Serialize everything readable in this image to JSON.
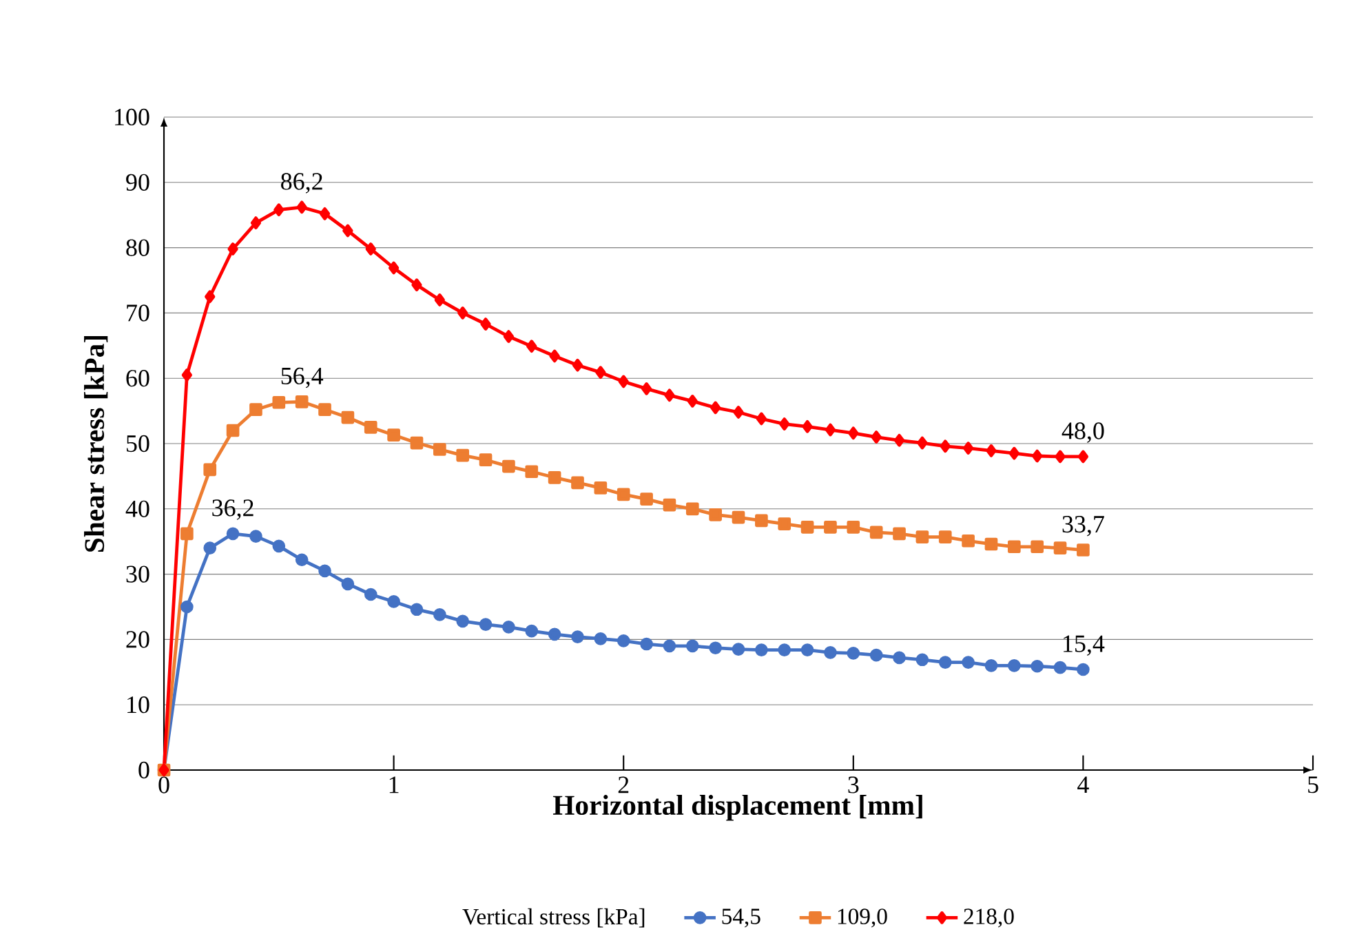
{
  "chart_data": {
    "type": "line",
    "xlabel": "Horizontal displacement [mm]",
    "ylabel": "Shear stress [kPa]",
    "legend_title": "Vertical stress [kPa]",
    "legend": "bottom",
    "grid": "y",
    "line_style": "solid",
    "x": [
      0,
      0.1,
      0.2,
      0.3,
      0.4,
      0.5,
      0.6,
      0.7,
      0.8,
      0.9,
      1.0,
      1.1,
      1.2,
      1.3,
      1.4,
      1.5,
      1.6,
      1.7,
      1.8,
      1.9,
      2.0,
      2.1,
      2.2,
      2.3,
      2.4,
      2.5,
      2.6,
      2.7,
      2.8,
      2.9,
      3.0,
      3.1,
      3.2,
      3.3,
      3.4,
      3.5,
      3.6,
      3.7,
      3.8,
      3.9,
      4.0
    ],
    "xlim": [
      0,
      5
    ],
    "xticks": [
      0,
      1,
      2,
      3,
      4,
      5
    ],
    "ylim": [
      0,
      100
    ],
    "yticks": [
      0,
      10,
      20,
      30,
      40,
      50,
      60,
      70,
      80,
      90,
      100
    ],
    "series": [
      {
        "name": "54,5",
        "color": "#4472c4",
        "marker": "circle",
        "values": [
          0,
          25,
          34,
          36.2,
          35.8,
          34.3,
          32.2,
          30.5,
          28.5,
          26.9,
          25.8,
          24.6,
          23.8,
          22.8,
          22.3,
          21.9,
          21.3,
          20.8,
          20.4,
          20.1,
          19.8,
          19.3,
          19.0,
          19.0,
          18.7,
          18.5,
          18.4,
          18.4,
          18.4,
          18.0,
          17.9,
          17.6,
          17.2,
          16.9,
          16.5,
          16.5,
          16.0,
          16.0,
          15.9,
          15.7,
          15.4
        ],
        "value_labels": [
          null,
          null,
          null,
          "36,2",
          null,
          null,
          null,
          null,
          null,
          null,
          null,
          null,
          null,
          null,
          null,
          null,
          null,
          null,
          null,
          null,
          null,
          null,
          null,
          null,
          null,
          null,
          null,
          null,
          null,
          null,
          null,
          null,
          null,
          null,
          null,
          null,
          null,
          null,
          null,
          null,
          "15,4"
        ]
      },
      {
        "name": "109,0",
        "color": "#ed7d31",
        "marker": "square",
        "values": [
          0,
          36.2,
          46,
          52,
          55.2,
          56.3,
          56.4,
          55.2,
          54,
          52.5,
          51.3,
          50.1,
          49.1,
          48.2,
          47.5,
          46.5,
          45.7,
          44.8,
          44.0,
          43.2,
          42.2,
          41.5,
          40.6,
          40.0,
          39.1,
          38.7,
          38.2,
          37.7,
          37.2,
          37.2,
          37.2,
          36.4,
          36.2,
          35.7,
          35.7,
          35.1,
          34.6,
          34.2,
          34.2,
          34.0,
          33.7
        ],
        "value_labels": [
          null,
          null,
          null,
          null,
          null,
          null,
          "56,4",
          null,
          null,
          null,
          null,
          null,
          null,
          null,
          null,
          null,
          null,
          null,
          null,
          null,
          null,
          null,
          null,
          null,
          null,
          null,
          null,
          null,
          null,
          null,
          null,
          null,
          null,
          null,
          null,
          null,
          null,
          null,
          null,
          null,
          "33,7"
        ]
      },
      {
        "name": "218,0",
        "color": "#ff0000",
        "marker": "diamond",
        "values": [
          0,
          60.5,
          72.5,
          79.8,
          83.8,
          85.8,
          86.2,
          85.2,
          82.6,
          79.8,
          76.9,
          74.3,
          72.0,
          70.0,
          68.3,
          66.4,
          64.9,
          63.4,
          62.0,
          60.9,
          59.5,
          58.4,
          57.4,
          56.5,
          55.5,
          54.8,
          53.8,
          53.0,
          52.6,
          52.1,
          51.6,
          51.0,
          50.5,
          50.1,
          49.6,
          49.3,
          48.9,
          48.5,
          48.1,
          48.0,
          48.0
        ],
        "value_labels": [
          null,
          null,
          null,
          null,
          null,
          null,
          "86,2",
          null,
          null,
          null,
          null,
          null,
          null,
          null,
          null,
          null,
          null,
          null,
          null,
          null,
          null,
          null,
          null,
          null,
          null,
          null,
          null,
          null,
          null,
          null,
          null,
          null,
          null,
          null,
          null,
          null,
          null,
          null,
          null,
          null,
          "48,0"
        ]
      }
    ]
  }
}
